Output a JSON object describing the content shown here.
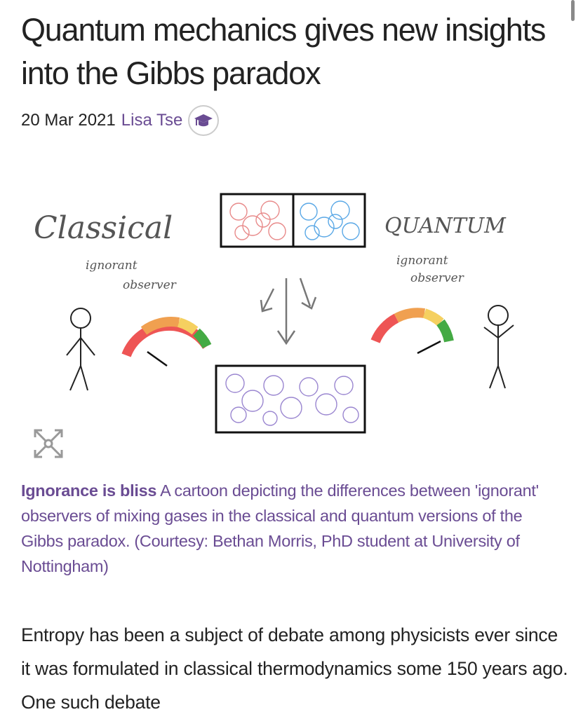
{
  "article": {
    "title": "Quantum mechanics gives new insights into the Gibbs paradox",
    "date": "20 Mar 2021",
    "author": "Lisa Tse",
    "author_badge_icon": "graduation-cap-icon"
  },
  "figure": {
    "illustration_text": {
      "classical": "Classical",
      "quantum": "QUANTUM",
      "ignorant_observer_left": [
        "ignorant",
        "observer"
      ],
      "ignorant_observer_right": [
        "ignorant",
        "observer"
      ]
    },
    "expand_icon": "expand-arrows-icon",
    "caption_title": "Ignorance is bliss",
    "caption_text": "A cartoon depicting the differences between 'ignorant' observers of mixing gases in the classical and quantum versions of the Gibbs paradox. (Courtesy: Bethan Morris, PhD student at University of Nottingham)"
  },
  "body_text": "Entropy has been a subject of debate among physicists ever since it was formulated in classical thermodynamics some 150 years ago. One such debate",
  "colors": {
    "accent": "#6a4c93",
    "text": "#222222"
  }
}
